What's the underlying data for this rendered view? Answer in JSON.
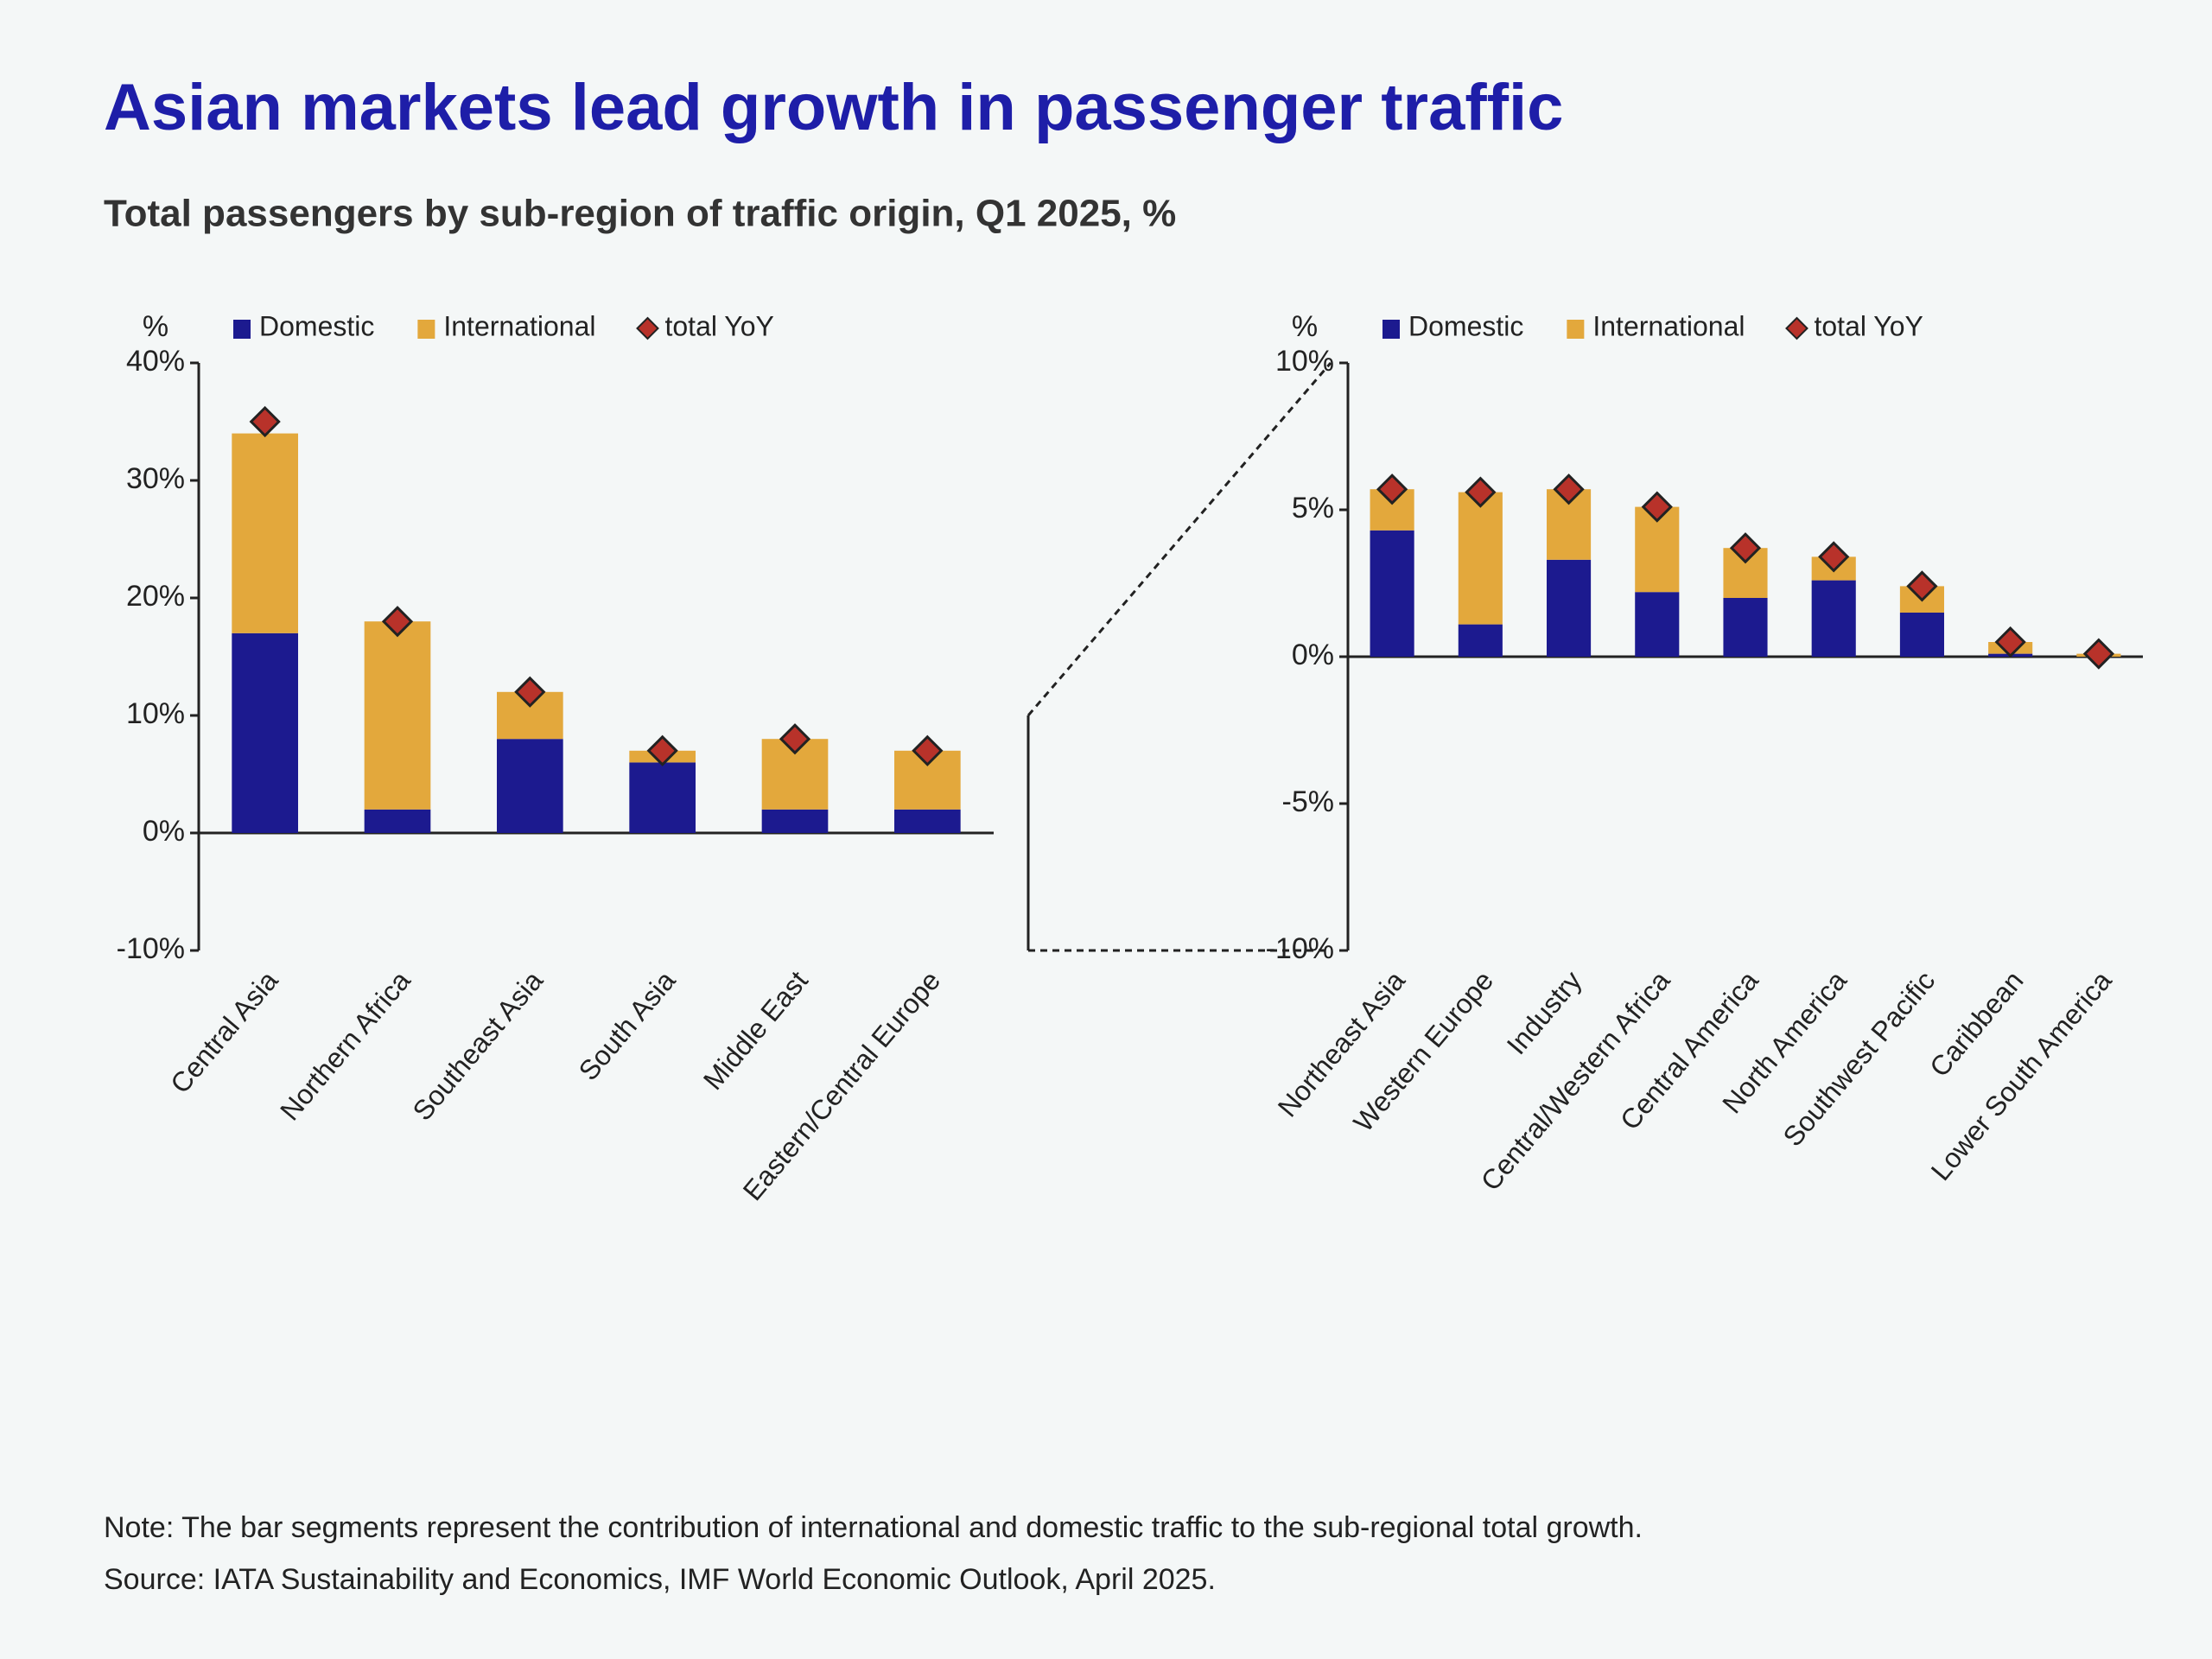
{
  "title": "Asian markets lead growth in passenger traffic",
  "subtitle": "Total passengers by sub-region of traffic origin, Q1 2025, %",
  "chart_data": [
    {
      "type": "bar",
      "stacked": true,
      "ylabel": "%",
      "categories": [
        "Central Asia",
        "Northern Africa",
        "Southeast Asia",
        "South Asia",
        "Middle East",
        "Eastern/Central Europe"
      ],
      "series": [
        {
          "name": "Domestic",
          "kind": "bar",
          "color": "#1c1a8f",
          "values": [
            17,
            2,
            8,
            6,
            2,
            2
          ]
        },
        {
          "name": "International",
          "kind": "bar",
          "color": "#e3a83c",
          "values": [
            17,
            16,
            4,
            1,
            6,
            5
          ]
        },
        {
          "name": "total YoY",
          "kind": "marker",
          "color": "#b8322a",
          "values": [
            35,
            18,
            12,
            7,
            8,
            7
          ]
        }
      ],
      "ylim": [
        -10,
        40
      ],
      "yticks": [
        {
          "value": -10,
          "label": "-10%"
        },
        {
          "value": 0,
          "label": "0%"
        },
        {
          "value": 10,
          "label": "10%"
        },
        {
          "value": 20,
          "label": "20%"
        },
        {
          "value": 30,
          "label": "30%"
        },
        {
          "value": 40,
          "label": "40%"
        }
      ]
    },
    {
      "type": "bar",
      "stacked": true,
      "ylabel": "%",
      "categories": [
        "Northeast Asia",
        "Western Europe",
        "Industry",
        "Central/Western Africa",
        "Central America",
        "North America",
        "Southwest Pacific",
        "Caribbean",
        "Lower South America"
      ],
      "series": [
        {
          "name": "Domestic",
          "kind": "bar",
          "color": "#1c1a8f",
          "values": [
            4.3,
            1.1,
            3.3,
            2.2,
            2.0,
            2.6,
            1.5,
            0.1,
            0
          ]
        },
        {
          "name": "International",
          "kind": "bar",
          "color": "#e3a83c",
          "values": [
            1.4,
            4.5,
            2.4,
            2.9,
            1.7,
            0.8,
            0.9,
            0.4,
            0.1
          ]
        },
        {
          "name": "total YoY",
          "kind": "marker",
          "color": "#b8322a",
          "values": [
            5.7,
            5.6,
            5.7,
            5.1,
            3.7,
            3.4,
            2.4,
            0.5,
            0.1
          ]
        }
      ],
      "ylim": [
        -10,
        10
      ],
      "yticks": [
        {
          "value": -10,
          "label": "-10%"
        },
        {
          "value": -5,
          "label": "-5%"
        },
        {
          "value": 0,
          "label": "0%"
        },
        {
          "value": 5,
          "label": "5%"
        },
        {
          "value": 10,
          "label": "10%"
        }
      ]
    }
  ],
  "note": "Note: The bar segments represent the contribution of international and domestic traffic to the sub-regional total growth.",
  "source": "Source: IATA Sustainability and Economics, IMF World Economic Outlook, April 2025."
}
